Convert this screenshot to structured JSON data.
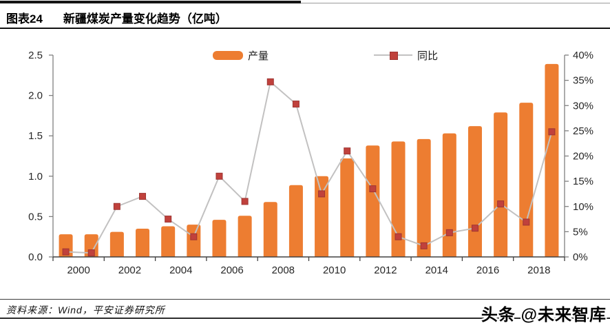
{
  "header": {
    "chart_label": "图表24",
    "title": "新疆煤炭产量变化趋势（亿吨）"
  },
  "legend": {
    "bar_label": "产量",
    "line_label": "同比"
  },
  "footer": {
    "source": "资料来源：Wind，平安证券研究所"
  },
  "watermark": {
    "text": "头条 @未来智库"
  },
  "colors": {
    "bar": "#ED7D31",
    "line": "#C2C1C1",
    "marker_fill": "#C0413C",
    "marker_border": "#9E3532",
    "axis": "#7F7F7F",
    "bottom_axis": "#404040",
    "tick_label": "#262626"
  },
  "chart_data": {
    "type": "bar+line",
    "title": "新疆煤炭产量变化趋势（亿吨）",
    "categories": [
      2000,
      2001,
      2002,
      2003,
      2004,
      2005,
      2006,
      2007,
      2008,
      2009,
      2010,
      2011,
      2012,
      2013,
      2014,
      2015,
      2016,
      2017,
      2018,
      2019
    ],
    "series": [
      {
        "name": "产量",
        "type": "bar",
        "axis": "left",
        "values": [
          0.28,
          0.28,
          0.31,
          0.35,
          0.38,
          0.4,
          0.46,
          0.51,
          0.68,
          0.89,
          1.0,
          1.22,
          1.38,
          1.43,
          1.46,
          1.53,
          1.62,
          1.79,
          1.91,
          2.39
        ]
      },
      {
        "name": "同比",
        "type": "line",
        "axis": "right",
        "values": [
          1.0,
          0.8,
          10.0,
          12.0,
          7.5,
          4.0,
          16.0,
          11.0,
          34.7,
          30.3,
          12.5,
          21.0,
          13.5,
          4.0,
          2.2,
          4.8,
          5.7,
          10.5,
          6.9,
          24.8
        ]
      }
    ],
    "left_axis": {
      "min": 0,
      "max": 2.5,
      "step": 0.5,
      "format": "one_decimal"
    },
    "right_axis": {
      "min": 0,
      "max": 40,
      "step": 5,
      "format": "percent"
    },
    "x_tick_interval": 2,
    "grid": false,
    "legend_position": "top-center"
  }
}
